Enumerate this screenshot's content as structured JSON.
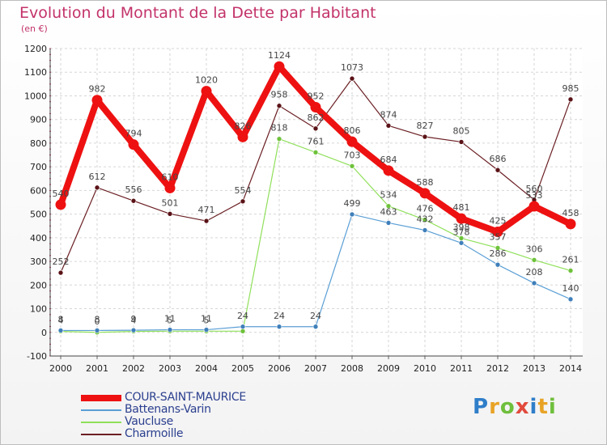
{
  "header": {
    "title": "Evolution du Montant de la Dette par Habitant",
    "subtitle": "(en €)"
  },
  "brand": {
    "text": "Proxiti",
    "colors": [
      "#2f7ec9",
      "#e8a326",
      "#6fbf3c",
      "#e14a3c",
      "#2f7ec9",
      "#e8a326",
      "#6fbf3c"
    ]
  },
  "chart_data": {
    "type": "line",
    "title": "Evolution du Montant de la Dette par Habitant",
    "subtitle": "(en €)",
    "ylim": [
      -100,
      1200
    ],
    "y_ticks": [
      -100,
      0,
      100,
      200,
      300,
      400,
      500,
      600,
      700,
      800,
      900,
      1000,
      1100,
      1200
    ],
    "categories": [
      "2000",
      "2001",
      "2002",
      "2003",
      "2004",
      "2005",
      "2006",
      "2007",
      "2008",
      "2009",
      "2010",
      "2011",
      "2012",
      "2013",
      "2014"
    ],
    "grid": true,
    "legend_position": "bottom-left",
    "series": [
      {
        "name": "Charmoille",
        "color": "#6b1f24",
        "marker": "#5a1216",
        "width": 1.2,
        "values": [
          252,
          612,
          556,
          501,
          471,
          554,
          958,
          862,
          1073,
          874,
          827,
          805,
          686,
          560,
          985
        ]
      },
      {
        "name": "Vaucluse",
        "color": "#8fe05a",
        "marker": "#6ec23a",
        "width": 1.2,
        "values": [
          4,
          0,
          4,
          5,
          5,
          5,
          818,
          761,
          703,
          534,
          476,
          398,
          357,
          306,
          261
        ]
      },
      {
        "name": "Battenans-Varin",
        "color": "#5b9fd5",
        "marker": "#3f7fba",
        "width": 1.2,
        "values": [
          8,
          8,
          9,
          11,
          11,
          24,
          24,
          24,
          499,
          463,
          432,
          378,
          286,
          208,
          140
        ]
      },
      {
        "name": "COUR-SAINT-MAURICE",
        "color": "#ee1111",
        "marker": "#ee1111",
        "width": 8,
        "values": [
          540,
          982,
          794,
          610,
          1020,
          826,
          1124,
          952,
          806,
          684,
          588,
          481,
          425,
          533,
          458
        ]
      }
    ],
    "data_labels": {
      "Charmoille": [
        "252",
        "612",
        "556",
        "501",
        "471",
        "554",
        "958",
        "862",
        "1073",
        "874",
        "827",
        "805",
        "686",
        "560",
        "985"
      ],
      "Vaucluse": [
        "4",
        "0",
        "4",
        "5",
        "5",
        "",
        "818",
        "761",
        "703",
        "534",
        "476",
        "398",
        "357",
        "306",
        "261"
      ],
      "Battenans-Varin": [
        "8",
        "8",
        "9",
        "11",
        "11",
        "24",
        "24",
        "24",
        "499",
        "463",
        "432",
        "378",
        "286",
        "208",
        "140"
      ],
      "COUR-SAINT-MAURICE": [
        "540",
        "982",
        "794",
        "610",
        "1020",
        "826",
        "1124",
        "952",
        "806",
        "684",
        "588",
        "481",
        "425",
        "533",
        "458"
      ]
    }
  },
  "legend": {
    "items": [
      {
        "label": "COUR-SAINT-MAURICE",
        "color": "#ee1111"
      },
      {
        "label": "Battenans-Varin",
        "color": "#5b9fd5"
      },
      {
        "label": "Vaucluse",
        "color": "#8fe05a"
      },
      {
        "label": "Charmoille",
        "color": "#6b1f24"
      }
    ]
  }
}
